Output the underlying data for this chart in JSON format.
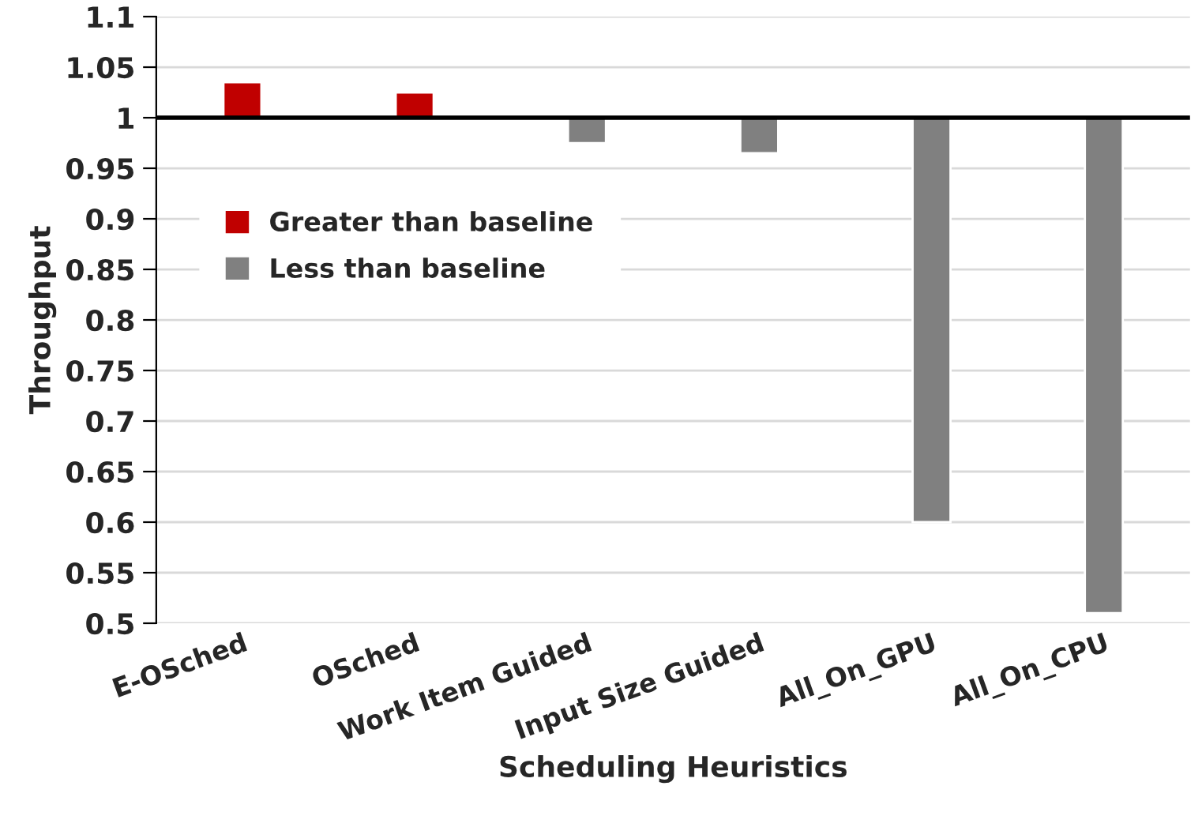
{
  "chart_data": {
    "type": "bar",
    "xlabel": "Scheduling Heuristics",
    "ylabel": "Throughput",
    "categories": [
      "E-OSched",
      "OSched",
      "Work Item Guided",
      "Input Size Guided",
      "All_On_GPU",
      "All_On_CPU"
    ],
    "series": [
      {
        "name": "Greater than baseline",
        "color": "#c00000",
        "base": [
          1,
          1,
          null,
          null,
          null,
          null
        ],
        "values": [
          0.035,
          0.025,
          null,
          null,
          null,
          null
        ]
      },
      {
        "name": "Less than baseline",
        "color": "#808080",
        "base": [
          null,
          null,
          1,
          1,
          1,
          1
        ],
        "values": [
          null,
          null,
          -0.025,
          -0.035,
          -0.4,
          -0.49
        ]
      }
    ],
    "ylim": [
      0.5,
      1.1
    ],
    "yticks": [
      0.5,
      0.55,
      0.6,
      0.65,
      0.7,
      0.75,
      0.8,
      0.85,
      0.9,
      0.95,
      1,
      1.05,
      1.1
    ],
    "ref_lines": [
      {
        "axis": "y",
        "value": 1,
        "color": "#000000"
      }
    ],
    "grid": "y",
    "legend": "left"
  }
}
